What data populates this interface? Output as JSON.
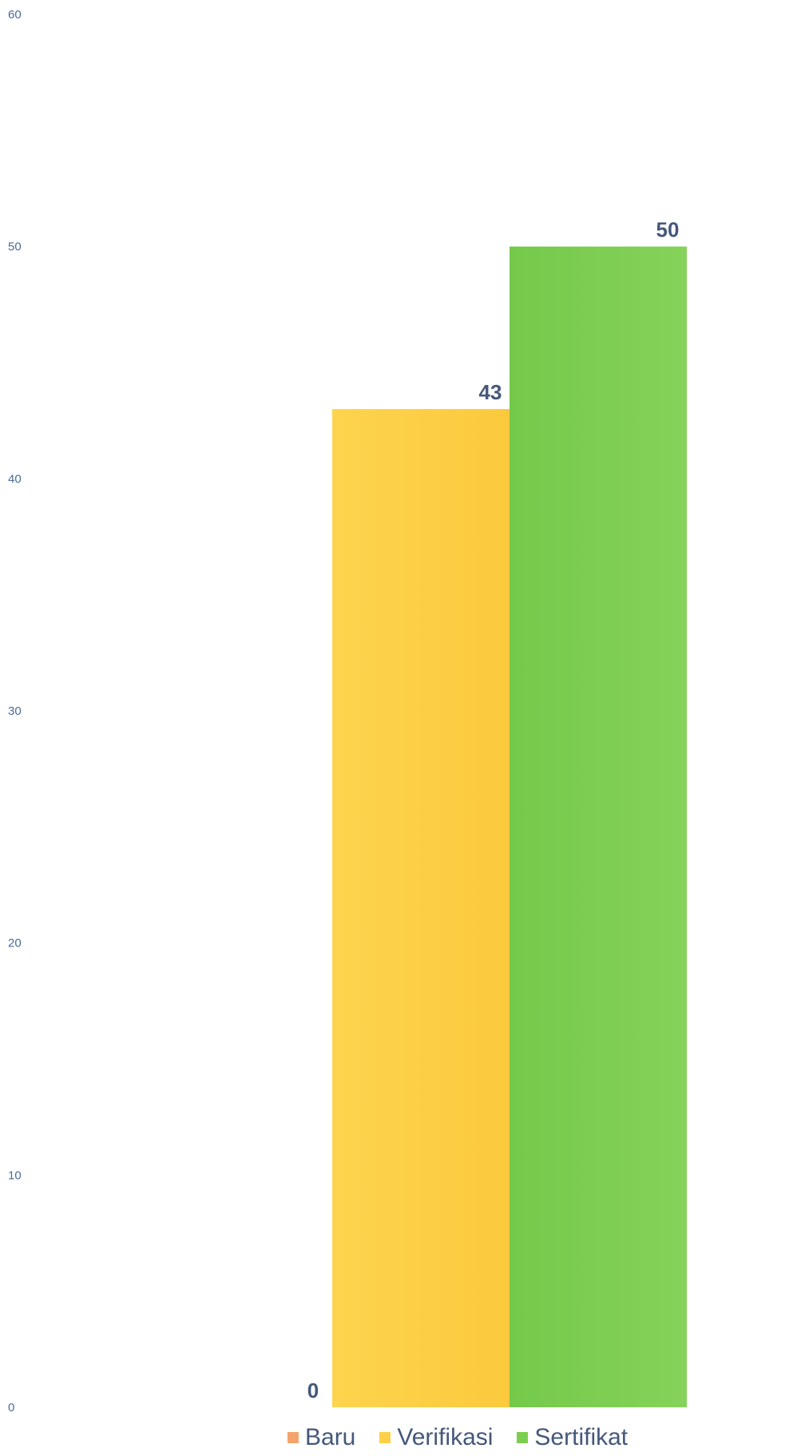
{
  "chart_data": {
    "type": "bar",
    "title": "",
    "xlabel": "",
    "ylabel": "",
    "ylim": [
      0,
      60
    ],
    "yticks": [
      0,
      10,
      20,
      30,
      40,
      50,
      60
    ],
    "grid": false,
    "legend_position": "bottom",
    "series": [
      {
        "name": "Baru",
        "value": 0,
        "color": "#f4a46a"
      },
      {
        "name": "Verifikasi",
        "value": 43,
        "color": "#fdd04a"
      },
      {
        "name": "Sertifikat",
        "value": 50,
        "color": "#7cce4e"
      }
    ]
  }
}
